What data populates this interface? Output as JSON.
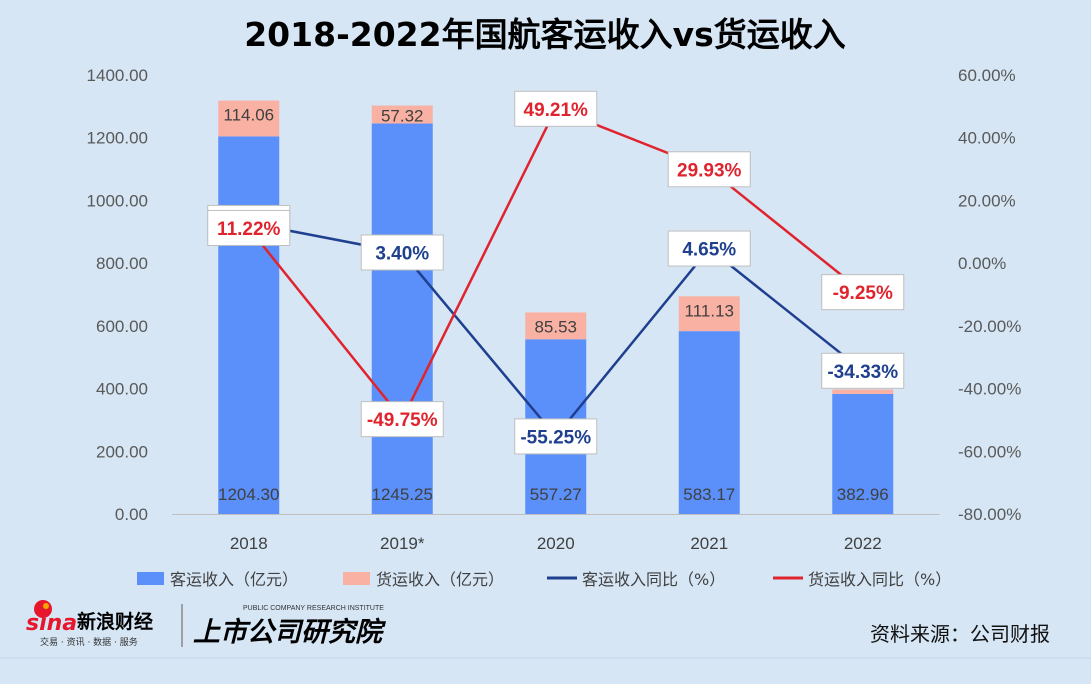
{
  "chart_data": {
    "type": "bar",
    "title": "2018-2022年国航客运收入vs货运收入",
    "categories": [
      "2018",
      "2019*",
      "2020",
      "2021",
      "2022"
    ],
    "left_axis": {
      "range": [
        0,
        1400
      ],
      "ticks": [
        "0.00",
        "200.00",
        "400.00",
        "600.00",
        "800.00",
        "1000.00",
        "1200.00",
        "1400.00"
      ]
    },
    "right_axis": {
      "range": [
        -80,
        60
      ],
      "ticks": [
        "-80.00%",
        "-60.00%",
        "-40.00%",
        "-20.00%",
        "0.00%",
        "20.00%",
        "40.00%",
        "60.00%"
      ]
    },
    "stacked": true,
    "series": [
      {
        "name": "客运收入（亿元）",
        "kind": "bar",
        "color": "#5b8ff9",
        "values": [
          1204.3,
          1245.25,
          557.27,
          583.17,
          382.96
        ],
        "labels": [
          "1204.30",
          "1245.25",
          "557.27",
          "583.17",
          "382.96"
        ]
      },
      {
        "name": "货运收入（亿元）",
        "kind": "bar",
        "color": "#f8b1a2",
        "values": [
          114.06,
          57.32,
          85.53,
          111.13,
          14.0
        ],
        "labels": [
          "114.06",
          "57.32",
          "85.53",
          "111.13",
          ""
        ]
      },
      {
        "name": "客运收入同比（%）",
        "kind": "line",
        "axis": "right",
        "color": "#1f3f8f",
        "values": [
          12.82,
          3.4,
          -55.25,
          4.65,
          -34.33
        ],
        "labels": [
          "12.82%",
          "3.40%",
          "-55.25%",
          "4.65%",
          "-34.33%"
        ]
      },
      {
        "name": "货运收入同比（%）",
        "kind": "line",
        "axis": "right",
        "color": "#e0242e",
        "values": [
          11.22,
          -49.75,
          49.21,
          29.93,
          -9.25
        ],
        "labels": [
          "11.22%",
          "-49.75%",
          "49.21%",
          "29.93%",
          "-9.25%"
        ]
      }
    ],
    "grid": false,
    "legend": "bottom"
  },
  "footer": {
    "sina_logo": "sina",
    "sina_brand": "新浪财经",
    "sina_tagline": "交易 · 资讯 · 数据 · 服务",
    "institute_en": "PUBLIC COMPANY RESEARCH INSTITUTE",
    "institute_cn": "上市公司研究院",
    "source": "资料来源：公司财报"
  }
}
